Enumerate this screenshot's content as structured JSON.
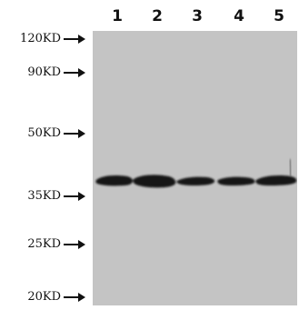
{
  "lanes": [
    "1",
    "2",
    "3",
    "4",
    "5"
  ],
  "markers": [
    "120KD",
    "90KD",
    "50KD",
    "35KD",
    "25KD",
    "20KD"
  ],
  "colors": {
    "membrane": "#c4c4c4",
    "band": "#121212",
    "text": "#111111"
  },
  "icons": {
    "marker_arrow": "right-arrow-icon"
  }
}
